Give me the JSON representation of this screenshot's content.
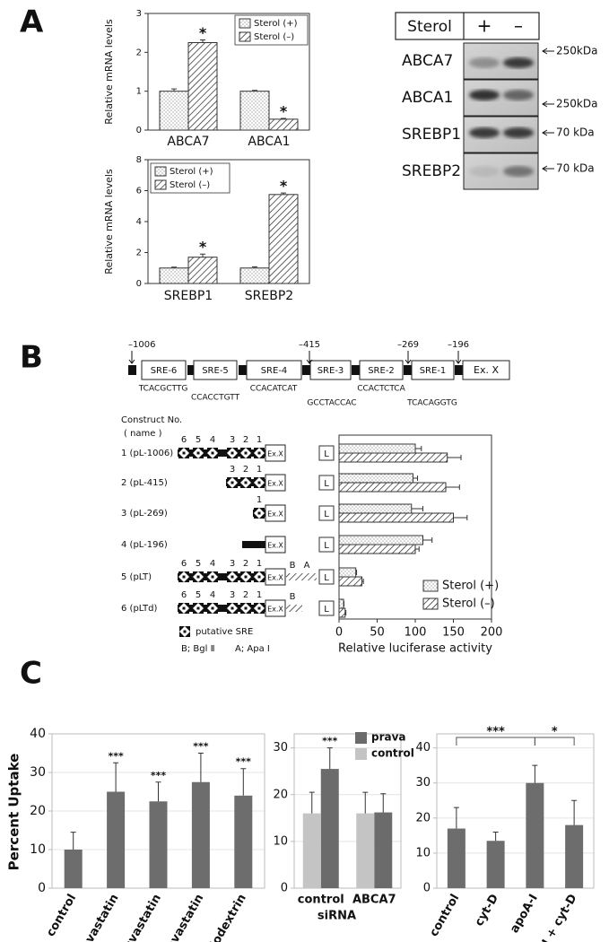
{
  "panel_labels": [
    "A",
    "B",
    "C"
  ],
  "chart_data": [
    {
      "type": "bar",
      "categories": [
        "ABCA7",
        "ABCA1"
      ],
      "ylabel": "Relative mRNA levels",
      "ylim": [
        0,
        3
      ],
      "yticks": [
        0,
        1,
        2,
        3
      ],
      "grid": false,
      "legend": "upper right",
      "series": [
        {
          "name": "Sterol (+)",
          "pattern": "dots",
          "values": [
            1.0,
            1.0
          ],
          "errors": [
            0.06,
            0.02
          ]
        },
        {
          "name": "Sterol (–)",
          "pattern": "hatch",
          "values": [
            2.25,
            0.28
          ],
          "errors": [
            0.07,
            0.02
          ],
          "significance": [
            "*",
            "*"
          ]
        }
      ]
    },
    {
      "type": "bar",
      "categories": [
        "SREBP1",
        "SREBP2"
      ],
      "ylabel": "Relative mRNA levels",
      "ylim": [
        0,
        8
      ],
      "yticks": [
        0,
        2,
        4,
        6,
        8
      ],
      "grid": false,
      "legend": "upper left",
      "series": [
        {
          "name": "Sterol (+)",
          "pattern": "dots",
          "values": [
            1.0,
            1.0
          ],
          "errors": [
            0.06,
            0.08
          ]
        },
        {
          "name": "Sterol (–)",
          "pattern": "hatch",
          "values": [
            1.7,
            5.75
          ],
          "errors": [
            0.2,
            0.1
          ],
          "significance": [
            "*",
            "*"
          ]
        }
      ]
    },
    {
      "type": "barh",
      "categories": [
        "1 (pL-1006)",
        "2 (pL-415)",
        "3 (pL-269)",
        "4 (pL-196)",
        "5 (pLT)",
        "6 (pLTd)"
      ],
      "box_label": "L",
      "xlabel": "Relative luciferase activity",
      "xlim": [
        0,
        200
      ],
      "xticks": [
        0,
        50,
        100,
        150,
        200
      ],
      "legend": "lower right",
      "series": [
        {
          "name": "Sterol (+)",
          "pattern": "dots",
          "values": [
            100,
            97,
            95,
            110,
            22,
            6
          ],
          "errors": [
            8,
            6,
            15,
            12,
            1,
            0.5
          ]
        },
        {
          "name": "Sterol (–)",
          "pattern": "hatch",
          "values": [
            142,
            140,
            150,
            100,
            30,
            8
          ],
          "errors": [
            18,
            18,
            18,
            5,
            2,
            1
          ]
        }
      ]
    },
    {
      "type": "bar",
      "ylabel": "Percent Uptake",
      "categories": [
        "control",
        "pravastatin",
        "rosuvastatin",
        "simvastatin",
        "cyclodextrin"
      ],
      "ylim": [
        0,
        40
      ],
      "yticks": [
        0,
        10,
        20,
        30,
        40
      ],
      "grid": true,
      "series": [
        {
          "color": "#6d6d6d",
          "values": [
            10,
            25,
            22.5,
            27.5,
            24
          ],
          "errors": [
            4.5,
            7.5,
            5,
            7.5,
            7
          ],
          "significance": [
            null,
            "***",
            "***",
            "***",
            "***"
          ]
        }
      ]
    },
    {
      "type": "bar",
      "categories": [
        "control",
        "ABCA7"
      ],
      "xlabel": "siRNA",
      "ylim": [
        0,
        33
      ],
      "yticks": [
        0,
        10,
        20,
        30
      ],
      "grid": true,
      "legend": "upper right",
      "series": [
        {
          "name": "prava",
          "color": "#6b6b6b",
          "values": [
            25.5,
            16.2
          ],
          "errors": [
            4.5,
            4
          ],
          "significance": [
            "***",
            null
          ]
        },
        {
          "name": "control",
          "color": "#c4c4c4",
          "values": [
            16,
            16
          ],
          "errors": [
            4.5,
            4.5
          ]
        }
      ]
    },
    {
      "type": "bar",
      "categories": [
        "control",
        "cyt-D",
        "apoA-I",
        "apoA-I + cyt-D"
      ],
      "ylim": [
        0,
        44
      ],
      "yticks": [
        0,
        10,
        20,
        30,
        40
      ],
      "grid": true,
      "series": [
        {
          "color": "#6d6d6d",
          "values": [
            17,
            13.5,
            30,
            18
          ],
          "errors": [
            6,
            2.5,
            5,
            7
          ]
        }
      ],
      "brackets": [
        {
          "from": 0,
          "to": 2,
          "label": "***"
        },
        {
          "from": 2,
          "to": 3,
          "label": "*"
        }
      ]
    }
  ],
  "blot": {
    "header": "Sterol",
    "lanes": [
      "+",
      "–"
    ],
    "rows": [
      {
        "name": "ABCA7",
        "marker": "250kDa"
      },
      {
        "name": "ABCA1",
        "marker": "250kDa"
      },
      {
        "name": "SREBP1",
        "marker": "70 kDa"
      },
      {
        "name": "SREBP2",
        "marker": "70 kDa"
      }
    ]
  },
  "promoter": {
    "positions": [
      "–1006",
      "–415",
      "–269",
      "–196"
    ],
    "elements": [
      "SRE-6",
      "SRE-5",
      "SRE-4",
      "SRE-3",
      "SRE-2",
      "SRE-1"
    ],
    "exon": "Ex. X",
    "sequences": [
      "TCACGCTTG",
      "CCACCTGTT",
      "CCACATCAT",
      "GCCTACCAC",
      "CCACTCTCA",
      "TCACAGGTG"
    ]
  },
  "constructs": [
    {
      "sres": [
        "6",
        "5",
        "4",
        "3",
        "2",
        "1"
      ]
    },
    {
      "sres": [
        "3",
        "2",
        "1"
      ]
    },
    {
      "sres": [
        "1"
      ]
    },
    {
      "sres": []
    },
    {
      "sres": [
        "6",
        "5",
        "4",
        "3",
        "2",
        "1"
      ],
      "sites": [
        "B",
        "A"
      ]
    },
    {
      "sres": [
        "6",
        "5",
        "4",
        "3",
        "2",
        "1"
      ],
      "sites": [
        "B"
      ]
    }
  ],
  "construct_legend": {
    "header": "Construct No.",
    "subheader": "( name )",
    "exon": "Ex.X",
    "sre": "putative SRE",
    "sites": [
      "B; Bgl Ⅱ",
      "A; Apa Ⅰ"
    ]
  }
}
